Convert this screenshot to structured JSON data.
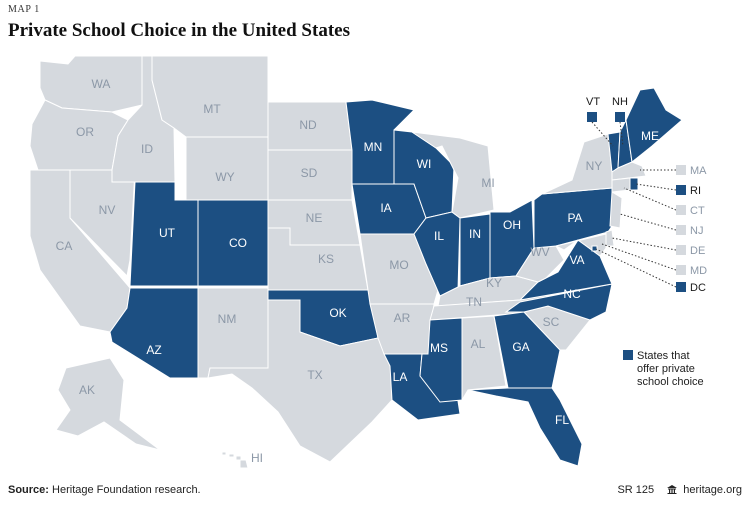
{
  "header": {
    "map_number": "MAP 1",
    "title": "Private School Choice in the United States"
  },
  "colors": {
    "choice": "#1c4f82",
    "no_choice": "#d5d9de",
    "label_on_choice": "#ffffff",
    "label_no_choice": "#8c98a7",
    "line": "#333333",
    "border": "#ffffff"
  },
  "states": [
    {
      "abbr": "WA",
      "choice": false
    },
    {
      "abbr": "OR",
      "choice": false
    },
    {
      "abbr": "CA",
      "choice": false
    },
    {
      "abbr": "NV",
      "choice": false
    },
    {
      "abbr": "ID",
      "choice": false
    },
    {
      "abbr": "MT",
      "choice": false
    },
    {
      "abbr": "WY",
      "choice": false
    },
    {
      "abbr": "UT",
      "choice": true
    },
    {
      "abbr": "AZ",
      "choice": true
    },
    {
      "abbr": "CO",
      "choice": true
    },
    {
      "abbr": "NM",
      "choice": false
    },
    {
      "abbr": "ND",
      "choice": false
    },
    {
      "abbr": "SD",
      "choice": false
    },
    {
      "abbr": "NE",
      "choice": false
    },
    {
      "abbr": "KS",
      "choice": false
    },
    {
      "abbr": "OK",
      "choice": true
    },
    {
      "abbr": "TX",
      "choice": false
    },
    {
      "abbr": "MN",
      "choice": true
    },
    {
      "abbr": "IA",
      "choice": true
    },
    {
      "abbr": "MO",
      "choice": false
    },
    {
      "abbr": "AR",
      "choice": false
    },
    {
      "abbr": "LA",
      "choice": true
    },
    {
      "abbr": "WI",
      "choice": true
    },
    {
      "abbr": "IL",
      "choice": true
    },
    {
      "abbr": "MI",
      "choice": false
    },
    {
      "abbr": "IN",
      "choice": true
    },
    {
      "abbr": "OH",
      "choice": true
    },
    {
      "abbr": "KY",
      "choice": false
    },
    {
      "abbr": "TN",
      "choice": false
    },
    {
      "abbr": "MS",
      "choice": true
    },
    {
      "abbr": "AL",
      "choice": false
    },
    {
      "abbr": "GA",
      "choice": true
    },
    {
      "abbr": "FL",
      "choice": true
    },
    {
      "abbr": "SC",
      "choice": false
    },
    {
      "abbr": "NC",
      "choice": true
    },
    {
      "abbr": "VA",
      "choice": true
    },
    {
      "abbr": "WV",
      "choice": false
    },
    {
      "abbr": "PA",
      "choice": true
    },
    {
      "abbr": "NY",
      "choice": false
    },
    {
      "abbr": "ME",
      "choice": true
    },
    {
      "abbr": "VT",
      "choice": true
    },
    {
      "abbr": "NH",
      "choice": true
    },
    {
      "abbr": "MA",
      "choice": false
    },
    {
      "abbr": "RI",
      "choice": true
    },
    {
      "abbr": "CT",
      "choice": false
    },
    {
      "abbr": "NJ",
      "choice": false
    },
    {
      "abbr": "DE",
      "choice": false
    },
    {
      "abbr": "MD",
      "choice": false
    },
    {
      "abbr": "DC",
      "choice": true
    },
    {
      "abbr": "AK",
      "choice": false
    },
    {
      "abbr": "HI",
      "choice": false
    }
  ],
  "legend": {
    "label": "States that offer private school choice"
  },
  "footer": {
    "source_label": "Source:",
    "source_text": "Heritage Foundation research.",
    "report_id": "SR 125",
    "site": "heritage.org"
  }
}
